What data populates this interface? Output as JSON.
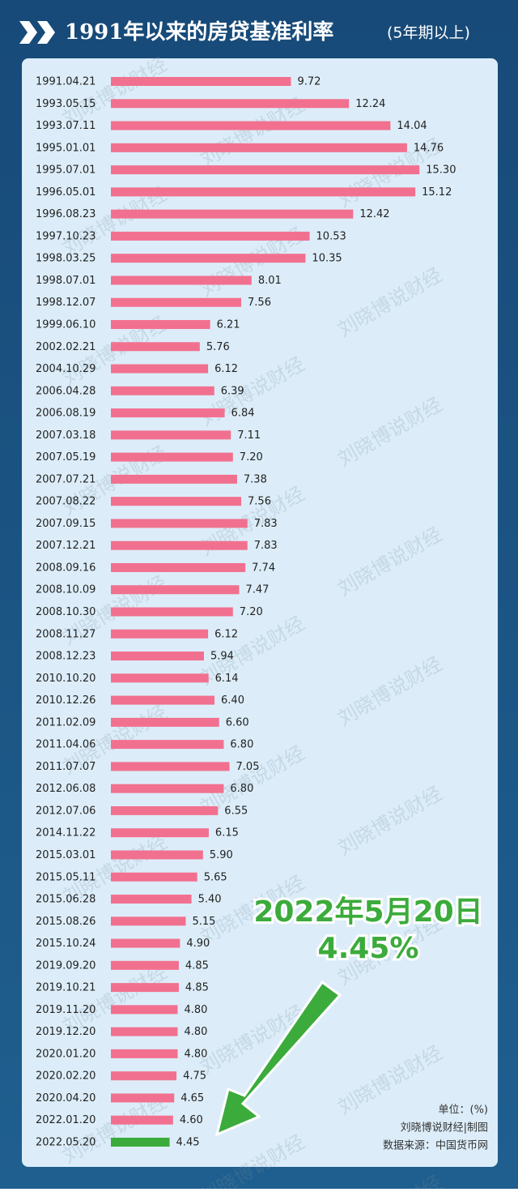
{
  "chart_data": {
    "type": "barh",
    "title": "1991年以来的房贷基准利率",
    "subtitle": "(5年期以上)",
    "categories": [
      "1991.04.21",
      "1993.05.15",
      "1993.07.11",
      "1995.01.01",
      "1995.07.01",
      "1996.05.01",
      "1996.08.23",
      "1997.10.23",
      "1998.03.25",
      "1998.07.01",
      "1998.12.07",
      "1999.06.10",
      "2002.02.21",
      "2004.10.29",
      "2006.04.28",
      "2006.08.19",
      "2007.03.18",
      "2007.05.19",
      "2007.07.21",
      "2007.08.22",
      "2007.09.15",
      "2007.12.21",
      "2008.09.16",
      "2008.10.09",
      "2008.10.30",
      "2008.11.27",
      "2008.12.23",
      "2010.10.20",
      "2010.12.26",
      "2011.02.09",
      "2011.04.06",
      "2011.07.07",
      "2012.06.08",
      "2012.07.06",
      "2014.11.22",
      "2015.03.01",
      "2015.05.11",
      "2015.06.28",
      "2015.08.26",
      "2015.10.24",
      "2019.09.20",
      "2019.10.21",
      "2019.11.20",
      "2019.12.20",
      "2020.01.20",
      "2020.02.20",
      "2020.04.20",
      "2022.01.20",
      "2022.05.20"
    ],
    "values": [
      9.72,
      12.24,
      14.04,
      14.76,
      15.3,
      15.12,
      12.42,
      10.53,
      10.35,
      8.01,
      7.56,
      6.21,
      5.76,
      6.12,
      6.39,
      6.84,
      7.11,
      7.2,
      7.38,
      7.56,
      7.83,
      7.83,
      7.74,
      7.47,
      7.2,
      6.12,
      5.94,
      6.14,
      6.4,
      6.6,
      6.8,
      7.05,
      6.8,
      6.55,
      6.15,
      5.9,
      5.65,
      5.4,
      5.15,
      4.9,
      4.85,
      4.85,
      4.8,
      4.8,
      4.8,
      4.75,
      4.65,
      4.6,
      4.45
    ],
    "value_labels": [
      "9.72",
      "12.24",
      "14.04",
      "14.76",
      "15.30",
      "15.12",
      "12.42",
      "10.53",
      "10.35",
      "8.01",
      "7.56",
      "6.21",
      "5.76",
      "6.12",
      "6.39",
      "6.84",
      "7.11",
      "7.20",
      "7.38",
      "7.56",
      "7.83",
      "7.83",
      "7.74",
      "7.47",
      "7.20",
      "6.12",
      "5.94",
      "6.14",
      "6.40",
      "6.60",
      "6.80",
      "7.05",
      "6.80",
      "6.55",
      "6.15",
      "5.90",
      "5.65",
      "5.40",
      "5.15",
      "4.90",
      "4.85",
      "4.85",
      "4.80",
      "4.80",
      "4.80",
      "4.75",
      "4.65",
      "4.60",
      "4.45"
    ],
    "colors": [
      "#f2708f",
      "#f2708f",
      "#f2708f",
      "#f2708f",
      "#f2708f",
      "#f2708f",
      "#f2708f",
      "#f2708f",
      "#f2708f",
      "#f2708f",
      "#f2708f",
      "#f2708f",
      "#f2708f",
      "#f2708f",
      "#f2708f",
      "#f2708f",
      "#f2708f",
      "#f2708f",
      "#f2708f",
      "#f2708f",
      "#f2708f",
      "#f2708f",
      "#f2708f",
      "#f2708f",
      "#f2708f",
      "#f2708f",
      "#f2708f",
      "#f2708f",
      "#f2708f",
      "#f2708f",
      "#f2708f",
      "#f2708f",
      "#f2708f",
      "#f2708f",
      "#f2708f",
      "#f2708f",
      "#f2708f",
      "#f2708f",
      "#f2708f",
      "#f2708f",
      "#f2708f",
      "#f2708f",
      "#f2708f",
      "#f2708f",
      "#f2708f",
      "#f2708f",
      "#f2708f",
      "#f2708f",
      "#3bab3b"
    ],
    "xlim": [
      1.9,
      18.7
    ],
    "annotation": {
      "date": "2022年5月20日",
      "rate": "4.45%"
    },
    "notes": [
      "单位：(%)",
      "刘晓博说财经|制图",
      "数据来源：中国货币网"
    ],
    "watermark": "刘晓博说财经"
  }
}
